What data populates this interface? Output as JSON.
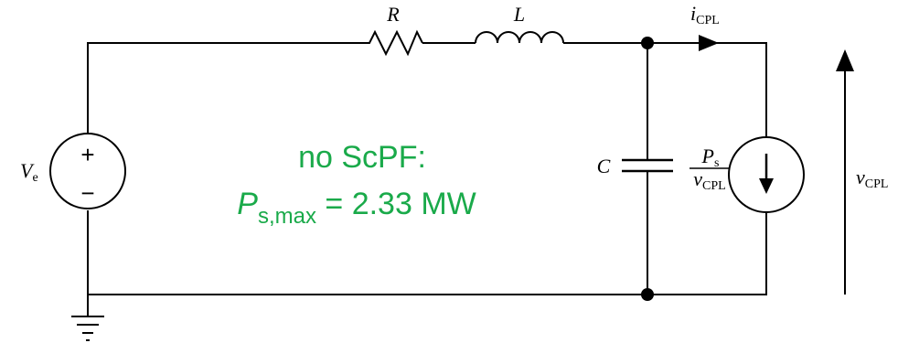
{
  "circuit": {
    "labels": {
      "source": {
        "main": "V",
        "sub": "e"
      },
      "resistor": "R",
      "inductor": "L",
      "capacitor": "C",
      "current": {
        "main": "i",
        "sub": "CPL"
      },
      "voltage": {
        "main": "v",
        "sub": "CPL"
      },
      "cpl_fraction": {
        "num_main": "P",
        "num_sub": "s",
        "den_main": "v",
        "den_sub": "CPL"
      },
      "source_plus": "+",
      "source_minus": "−"
    },
    "annotation": {
      "line1": "no ScPF:",
      "line2": {
        "main": "P",
        "sub": "s,max",
        "rest": " = 2.33 MW"
      },
      "color": "#1aaa4a"
    }
  }
}
